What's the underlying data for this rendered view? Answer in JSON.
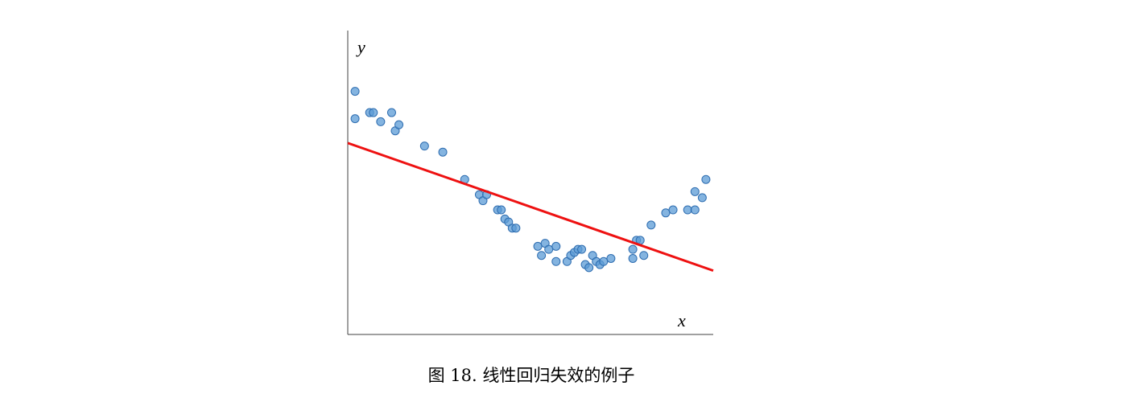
{
  "caption": "图 18. 线性回归失效的例子",
  "chart_data": {
    "type": "scatter",
    "title": "",
    "xlabel": "x",
    "ylabel": "y",
    "xlim": [
      0,
      1
    ],
    "ylim": [
      0,
      1
    ],
    "grid": false,
    "ticks": false,
    "legend": "none",
    "point_color": "#5b9bd5",
    "line_color": "#ee1111",
    "series": [
      {
        "values": [
          [
            0.02,
            0.8
          ],
          [
            0.02,
            0.71
          ],
          [
            0.06,
            0.73
          ],
          [
            0.07,
            0.73
          ],
          [
            0.09,
            0.7
          ],
          [
            0.12,
            0.73
          ],
          [
            0.13,
            0.67
          ],
          [
            0.14,
            0.69
          ],
          [
            0.21,
            0.62
          ],
          [
            0.26,
            0.6
          ],
          [
            0.32,
            0.51
          ],
          [
            0.36,
            0.46
          ],
          [
            0.37,
            0.44
          ],
          [
            0.38,
            0.46
          ],
          [
            0.41,
            0.41
          ],
          [
            0.42,
            0.41
          ],
          [
            0.43,
            0.38
          ],
          [
            0.44,
            0.37
          ],
          [
            0.45,
            0.35
          ],
          [
            0.46,
            0.35
          ],
          [
            0.52,
            0.29
          ],
          [
            0.53,
            0.26
          ],
          [
            0.54,
            0.3
          ],
          [
            0.55,
            0.28
          ],
          [
            0.57,
            0.29
          ],
          [
            0.57,
            0.24
          ],
          [
            0.6,
            0.24
          ],
          [
            0.61,
            0.26
          ],
          [
            0.62,
            0.27
          ],
          [
            0.63,
            0.28
          ],
          [
            0.64,
            0.28
          ],
          [
            0.65,
            0.23
          ],
          [
            0.66,
            0.22
          ],
          [
            0.67,
            0.26
          ],
          [
            0.68,
            0.24
          ],
          [
            0.69,
            0.23
          ],
          [
            0.7,
            0.24
          ],
          [
            0.72,
            0.25
          ],
          [
            0.78,
            0.28
          ],
          [
            0.78,
            0.25
          ],
          [
            0.79,
            0.31
          ],
          [
            0.8,
            0.31
          ],
          [
            0.81,
            0.26
          ],
          [
            0.83,
            0.36
          ],
          [
            0.87,
            0.4
          ],
          [
            0.89,
            0.41
          ],
          [
            0.93,
            0.41
          ],
          [
            0.95,
            0.41
          ],
          [
            0.95,
            0.47
          ],
          [
            0.97,
            0.45
          ],
          [
            0.98,
            0.51
          ]
        ]
      }
    ],
    "fit_line": [
      [
        0,
        0.63
      ],
      [
        1,
        0.21
      ]
    ]
  }
}
